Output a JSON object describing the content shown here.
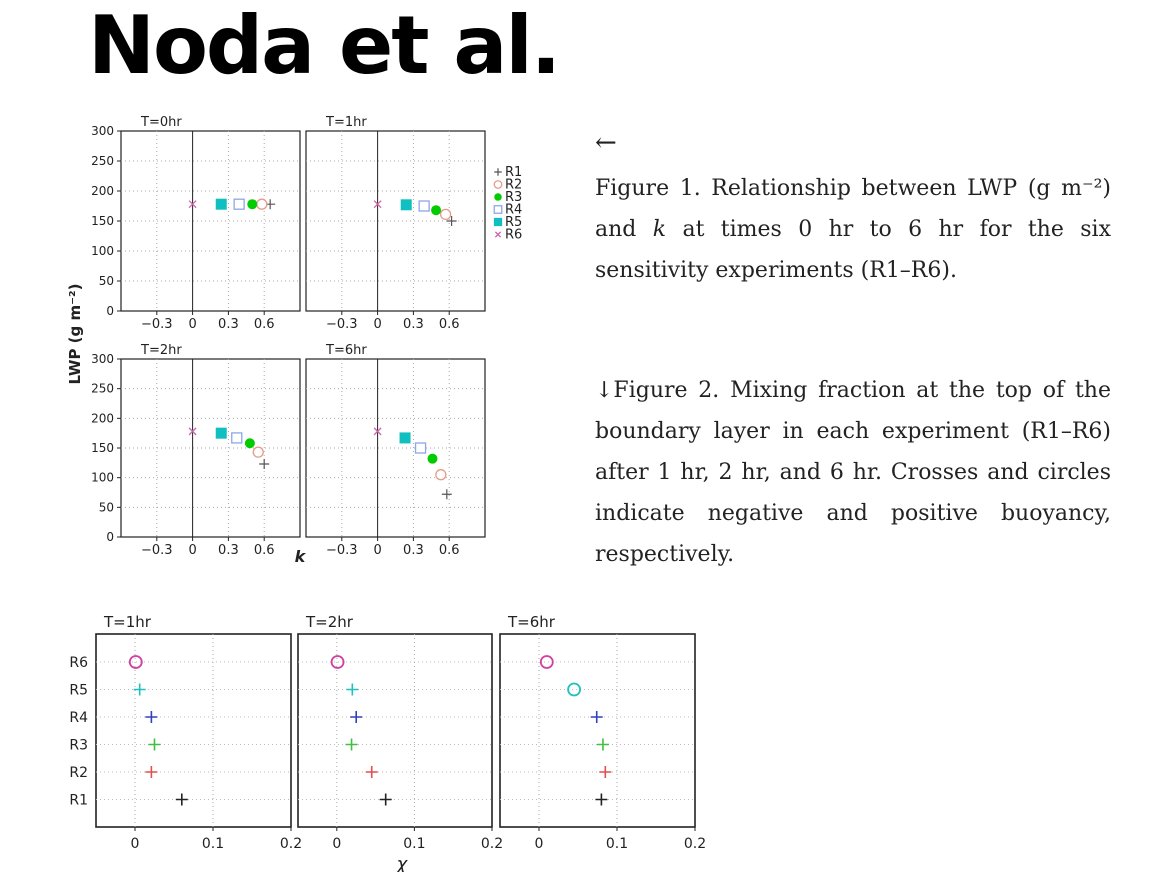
{
  "title": "Noda et al.",
  "captions": {
    "arrow": "←",
    "fig1": "Figure 1. Relationship between LWP (g m⁻²) and k at times 0 hr to 6 hr for the six sensitivity experiments (R1–R6).",
    "fig2": "↓Figure 2. Mixing fraction at the top of the boundary layer in each experiment (R1–R6) after 1 hr, 2 hr, and 6 hr. Crosses and circles indicate negative and positive buoyancy, respectively."
  },
  "chart_data": [
    {
      "type": "scatter",
      "figure": "fig1",
      "ylabel": "LWP (g m⁻²)",
      "xlabel": "k",
      "xlim": [
        -0.6,
        0.9
      ],
      "ylim": [
        0,
        300
      ],
      "xticks": [
        "−0.3",
        "0",
        "0.3",
        "0.6"
      ],
      "xtick_values": [
        -0.3,
        0,
        0.3,
        0.6
      ],
      "yticks": [
        "0",
        "50",
        "100",
        "150",
        "200",
        "250",
        "300"
      ],
      "ytick_values": [
        0,
        50,
        100,
        150,
        200,
        250,
        300
      ],
      "legend": [
        "R1",
        "R2",
        "R3",
        "R4",
        "R5",
        "R6"
      ],
      "legend_position": "right of top-right panel",
      "styles": {
        "R1": {
          "marker": "plus",
          "color": "#555555"
        },
        "R2": {
          "marker": "open-circle",
          "color": "#e69a8a"
        },
        "R3": {
          "marker": "filled-circle",
          "color": "#00cc00"
        },
        "R4": {
          "marker": "open-square",
          "color": "#8fa6e8"
        },
        "R5": {
          "marker": "filled-square",
          "color": "#10bfbf"
        },
        "R6": {
          "marker": "x",
          "color": "#cc66aa"
        }
      },
      "panels": [
        {
          "label": "T=0hr",
          "points": {
            "R1": [
              0.65,
              178
            ],
            "R2": [
              0.58,
              178
            ],
            "R3": [
              0.5,
              178
            ],
            "R4": [
              0.39,
              178
            ],
            "R5": [
              0.24,
              178
            ],
            "R6": [
              0.0,
              178
            ]
          }
        },
        {
          "label": "T=1hr",
          "points": {
            "R1": [
              0.62,
              150
            ],
            "R2": [
              0.57,
              161
            ],
            "R3": [
              0.49,
              168
            ],
            "R4": [
              0.39,
              175
            ],
            "R5": [
              0.24,
              177
            ],
            "R6": [
              0.0,
              178
            ]
          }
        },
        {
          "label": "T=2hr",
          "points": {
            "R1": [
              0.6,
              123
            ],
            "R2": [
              0.55,
              143
            ],
            "R3": [
              0.48,
              158
            ],
            "R4": [
              0.37,
              167
            ],
            "R5": [
              0.24,
              175
            ],
            "R6": [
              0.0,
              178
            ]
          }
        },
        {
          "label": "T=6hr",
          "points": {
            "R1": [
              0.58,
              72
            ],
            "R2": [
              0.53,
              105
            ],
            "R3": [
              0.46,
              132
            ],
            "R4": [
              0.36,
              150
            ],
            "R5": [
              0.23,
              167
            ],
            "R6": [
              0.0,
              178
            ]
          }
        }
      ]
    },
    {
      "type": "scatter",
      "figure": "fig2",
      "xlabel": "χ",
      "xlim": [
        -0.05,
        0.2
      ],
      "xticks": [
        "0",
        "0.1",
        "0.2"
      ],
      "xtick_values": [
        0,
        0.1,
        0.2
      ],
      "categories": [
        "R6",
        "R5",
        "R4",
        "R3",
        "R2",
        "R1"
      ],
      "colors": {
        "R1": "#222222",
        "R2": "#e05050",
        "R3": "#40c040",
        "R4": "#3040c0",
        "R5": "#20c0c0",
        "R6": "#d040a0"
      },
      "panels": [
        {
          "label": "T=1hr",
          "points": [
            {
              "run": "R6",
              "x": 0.001,
              "marker": "circle"
            },
            {
              "run": "R5",
              "x": 0.006,
              "marker": "plus"
            },
            {
              "run": "R4",
              "x": 0.021,
              "marker": "plus"
            },
            {
              "run": "R3",
              "x": 0.025,
              "marker": "plus"
            },
            {
              "run": "R2",
              "x": 0.021,
              "marker": "plus"
            },
            {
              "run": "R1",
              "x": 0.06,
              "marker": "plus"
            }
          ]
        },
        {
          "label": "T=2hr",
          "points": [
            {
              "run": "R6",
              "x": 0.001,
              "marker": "circle"
            },
            {
              "run": "R5",
              "x": 0.02,
              "marker": "plus"
            },
            {
              "run": "R4",
              "x": 0.025,
              "marker": "plus"
            },
            {
              "run": "R3",
              "x": 0.019,
              "marker": "plus"
            },
            {
              "run": "R2",
              "x": 0.045,
              "marker": "plus"
            },
            {
              "run": "R1",
              "x": 0.063,
              "marker": "plus"
            }
          ]
        },
        {
          "label": "T=6hr",
          "points": [
            {
              "run": "R6",
              "x": 0.01,
              "marker": "circle"
            },
            {
              "run": "R5",
              "x": 0.045,
              "marker": "circle"
            },
            {
              "run": "R4",
              "x": 0.074,
              "marker": "plus"
            },
            {
              "run": "R3",
              "x": 0.082,
              "marker": "plus"
            },
            {
              "run": "R2",
              "x": 0.085,
              "marker": "plus"
            },
            {
              "run": "R1",
              "x": 0.08,
              "marker": "plus"
            }
          ]
        }
      ]
    }
  ]
}
